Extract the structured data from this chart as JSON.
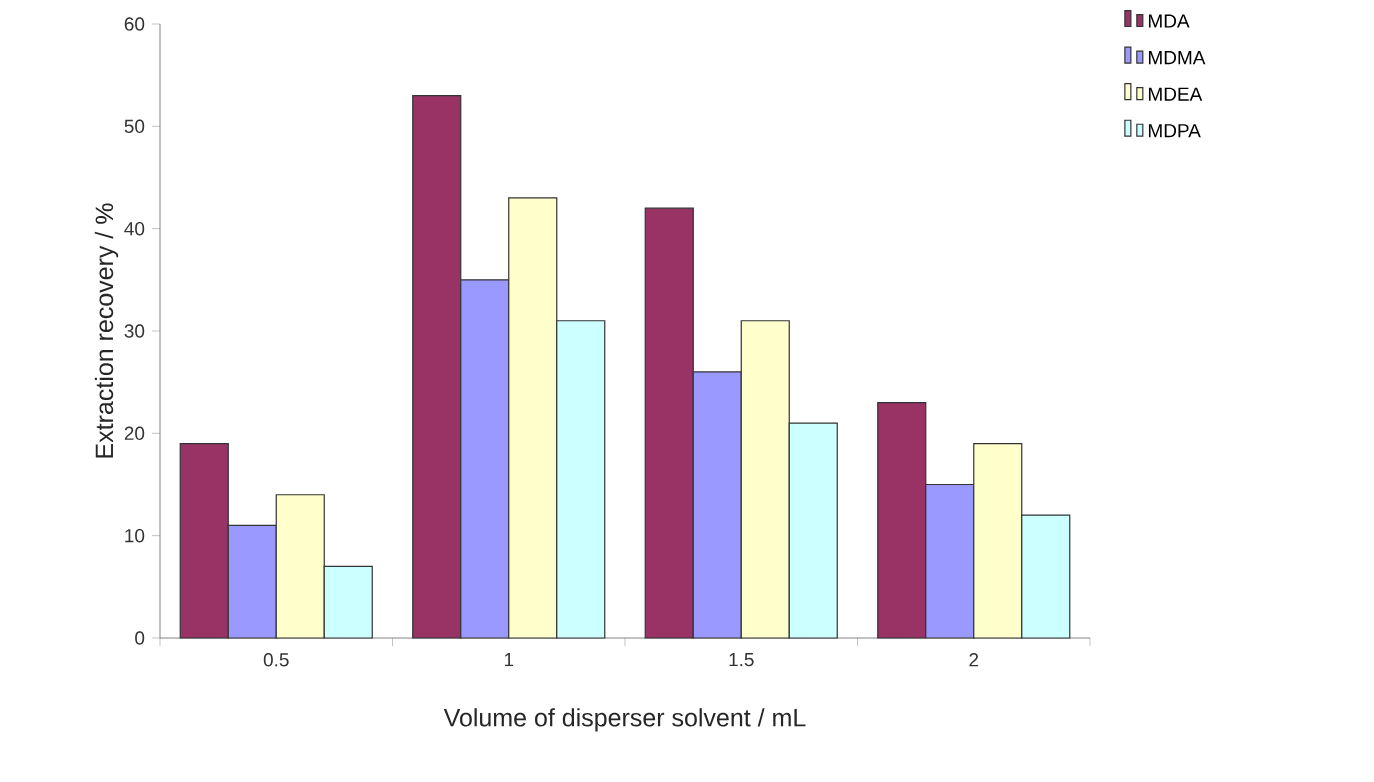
{
  "chart_data": {
    "type": "bar",
    "xlabel": "Volume of disperser solvent / mL",
    "ylabel": "Extraction recovery / %",
    "categories": [
      "0.5",
      "1",
      "1.5",
      "2"
    ],
    "series": [
      {
        "name": "MDA",
        "color": "#993366",
        "values": [
          19,
          53,
          42,
          23
        ]
      },
      {
        "name": "MDMA",
        "color": "#9999ff",
        "values": [
          11,
          35,
          26,
          15
        ]
      },
      {
        "name": "MDEA",
        "color": "#ffffcc",
        "values": [
          14,
          43,
          31,
          19
        ]
      },
      {
        "name": "MDPA",
        "color": "#ccffff",
        "values": [
          7,
          31,
          21,
          12
        ]
      }
    ],
    "ylim": [
      0,
      60
    ],
    "yticks": [
      0,
      10,
      20,
      30,
      40,
      50,
      60
    ],
    "legend": "right",
    "grid": false
  }
}
